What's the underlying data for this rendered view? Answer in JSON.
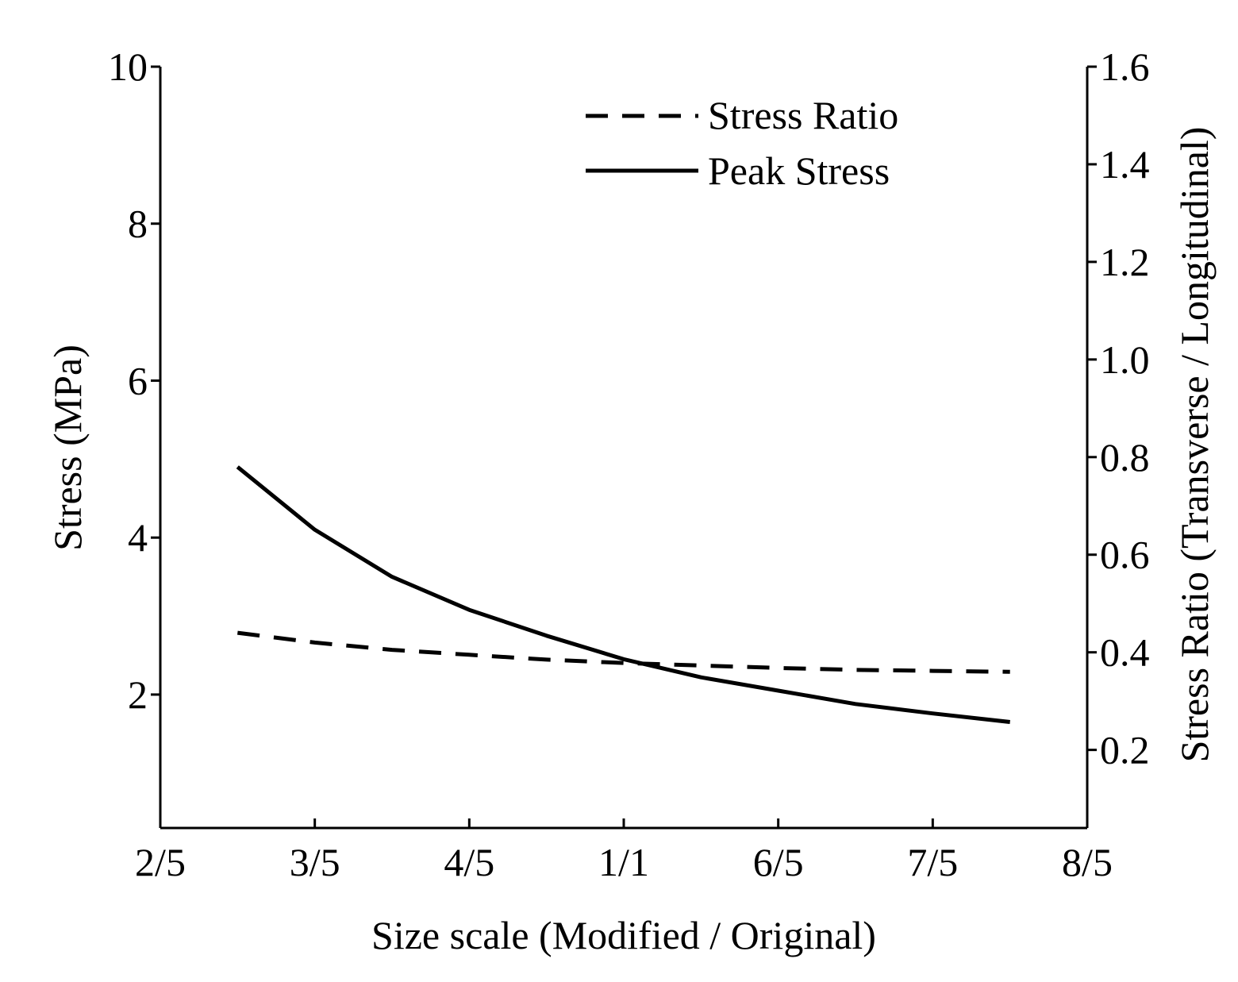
{
  "chart_data": {
    "type": "line",
    "title": "",
    "xlabel": "Size scale (Modified / Original)",
    "ylabel": "Stress (MPa)",
    "y2label": "Stress Ratio (Transverse / Longitudinal)",
    "xlim": [
      0.4,
      1.6
    ],
    "ylim": [
      0.3,
      10
    ],
    "y2lim": [
      0.04,
      1.6
    ],
    "x_ticks": [
      0.4,
      0.6,
      0.8,
      1.0,
      1.2,
      1.4,
      1.6
    ],
    "x_tick_labels": [
      "2/5",
      "3/5",
      "4/5",
      "1/1",
      "6/5",
      "7/5",
      "8/5"
    ],
    "y_ticks": [
      2,
      4,
      6,
      8,
      10
    ],
    "y_tick_labels": [
      "2",
      "4",
      "6",
      "8",
      "10"
    ],
    "y2_ticks": [
      0.2,
      0.4,
      0.6,
      0.8,
      1.0,
      1.2,
      1.4,
      1.6
    ],
    "y2_tick_labels": [
      "0.2",
      "0.4",
      "0.6",
      "0.8",
      "1.0",
      "1.2",
      "1.4",
      "1.6"
    ],
    "grid": false,
    "legend_position": "top-right",
    "series": [
      {
        "name": "Stress Ratio",
        "axis": "right",
        "style": "dashed",
        "color": "#000000",
        "x": [
          0.5,
          0.6,
          0.7,
          0.8,
          0.9,
          1.0,
          1.1,
          1.2,
          1.3,
          1.4,
          1.5
        ],
        "values": [
          0.44,
          0.42,
          0.405,
          0.395,
          0.385,
          0.378,
          0.373,
          0.368,
          0.364,
          0.362,
          0.36
        ]
      },
      {
        "name": "Peak Stress",
        "axis": "left",
        "style": "solid",
        "color": "#000000",
        "x": [
          0.5,
          0.6,
          0.7,
          0.8,
          0.9,
          1.0,
          1.1,
          1.2,
          1.3,
          1.4,
          1.5
        ],
        "values": [
          4.9,
          4.1,
          3.5,
          3.08,
          2.75,
          2.45,
          2.22,
          2.05,
          1.88,
          1.76,
          1.65
        ]
      }
    ]
  }
}
